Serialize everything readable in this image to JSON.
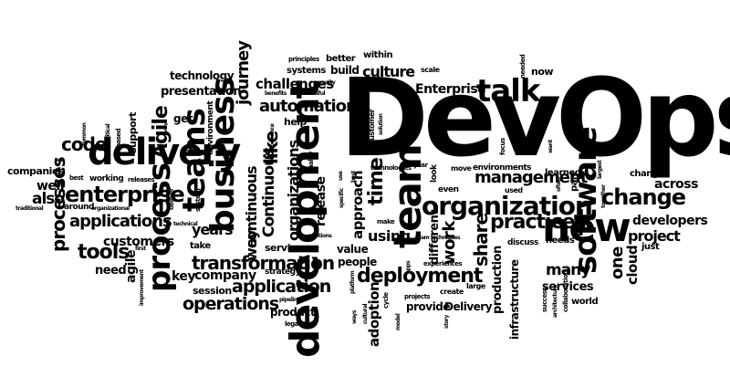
{
  "words": {
    "devops": "DevOps",
    "development": "development",
    "team": "team",
    "new": "new",
    "software": "software",
    "talk": "talk",
    "delivery": "delivery",
    "teams": "teams",
    "business": "business",
    "process": "process",
    "organization": "organization",
    "change": "change",
    "practices": "practices",
    "enterprise": "enterprise",
    "deployment": "deployment",
    "transformation": "transformation",
    "application": "application",
    "operations": "operations",
    "applications": "applications",
    "tools": "tools",
    "management": "management",
    "automation": "automation",
    "culture": "culture",
    "Enterprise": "Enterprise",
    "journey": "journey",
    "challenges": "challenges",
    "presentation": "presentation",
    "technology": "technology",
    "Agile": "Agile",
    "code": "code",
    "processes": "processes",
    "also": "also",
    "well": "well",
    "companies": "companies",
    "customers": "customers",
    "need": "need",
    "agile": "agile",
    "years": "years",
    "key": "key",
    "company": "company",
    "session": "session",
    "product": "product",
    "Continuous": "Continuous",
    "continuous": "continuous",
    "like": "like",
    "way": "way",
    "organizations": "organizations",
    "release": "release",
    "time": "time",
    "approach": "approach",
    "using": "using",
    "value": "value",
    "people": "people",
    "adoption": "adoption",
    "provide": "provide",
    "Delivery": "Delivery",
    "work": "work",
    "share": "share",
    "different": "different",
    "production": "production",
    "infrastructure": "infrastructure",
    "services": "services",
    "many": "many",
    "one": "one",
    "cloud": "cloud",
    "project": "project",
    "developers": "developers",
    "across": "across",
    "changes": "changes",
    "just": "just",
    "world": "world",
    "support": "support",
    "get": "get",
    "help": "help",
    "service": "service",
    "strategy": "strategy",
    "take": "take",
    "systems": "systems",
    "build": "build",
    "better": "better",
    "within": "within",
    "principles": "principles",
    "scale": "scale",
    "now": "now",
    "needed": "needed",
    "environments": "environments",
    "environment": "environment",
    "testing": "testing",
    "learned": "learned",
    "part": "part",
    "used": "used",
    "even": "even",
    "look": "look",
    "focus": "focus",
    "year": "year",
    "technologies": "technologies",
    "experiences": "experiences",
    "team_techniques": "team techniques",
    "discuss": "discuss",
    "needs": "needs",
    "large": "large",
    "create": "create",
    "projects": "projects",
    "cycle": "cycle",
    "model": "model",
    "story": "story",
    "success": "success",
    "architecture": "architecture",
    "collaboration": "collaboration",
    "together": "together",
    "largest": "largest",
    "want": "want",
    "often": "often",
    "move": "move",
    "customer": "customer",
    "solution": "solution",
    "security": "security",
    "successful": "successful",
    "benefits": "benefits",
    "experience": "experience",
    "quality": "quality",
    "solutions": "solutions",
    "make": "make",
    "specific": "specific",
    "best": "best",
    "use": "use",
    "platform": "platform",
    "pipeline": "pipeline",
    "legacy": "legacy",
    "cultural": "cultural",
    "ways": "ways",
    "apps": "apps",
    "working": "working",
    "releases": "releases",
    "deliver": "deliver",
    "technical": "technical",
    "system": "system",
    "based": "based",
    "critical": "critical",
    "common": "common",
    "every": "every",
    "set": "set",
    "around": "around",
    "organizational": "organizational",
    "traditional": "traditional",
    "first": "first",
    "improvement": "improvement",
    "operations_small": "Operations"
  }
}
